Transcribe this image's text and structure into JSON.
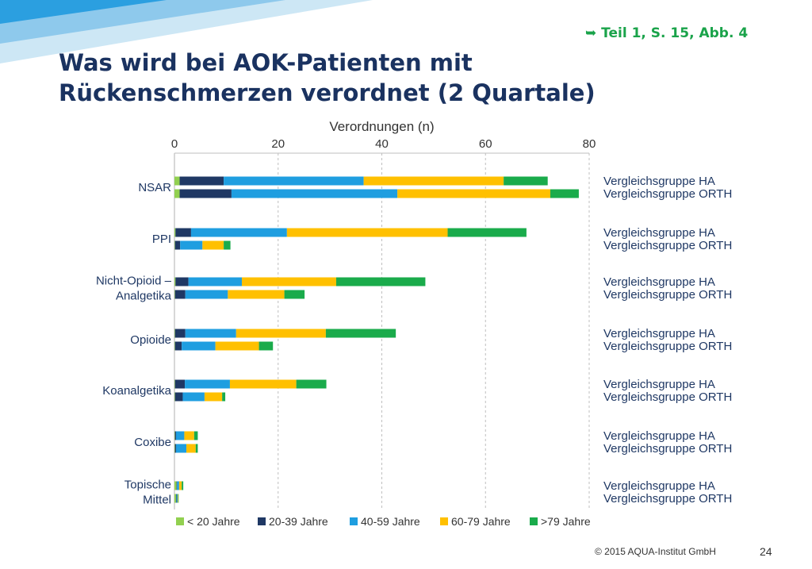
{
  "header": {
    "reference": "➥ Teil  1, S. 15, Abb. 4",
    "title_line1": "Was wird bei AOK-Patienten mit",
    "title_line2": "Rückenschmerzen verordnet (2 Quartale)"
  },
  "footer": {
    "copyright": "© 2015 AQUA-Institut GmbH",
    "page_number": "24"
  },
  "colors": {
    "stripe_light": "#cde7f5",
    "stripe_mid": "#8ec9ec",
    "stripe_dark": "#2b9fe0",
    "grid": "#bfbfbf",
    "axis_text": "#333333",
    "category_text": "#1f3864"
  },
  "chart_data": {
    "type": "bar",
    "orientation": "horizontal",
    "stacked": true,
    "xlabel": "Verordnungen (n)",
    "xlim": [
      0,
      80
    ],
    "xticks": [
      0,
      20,
      40,
      60,
      80
    ],
    "grid": true,
    "legend_position": "bottom",
    "categories": [
      "NSAR",
      "PPI",
      "Nicht-Opioid –\nAnalgetika",
      "Opioide",
      "Koanalgetika",
      "Coxibe",
      "Topische\nMittel"
    ],
    "groups": [
      "Vergleichsgruppe HA",
      "Vergleichsgruppe ORTH"
    ],
    "series": [
      {
        "name": "< 20 Jahre",
        "color": "#92d050",
        "values": [
          [
            1.0,
            1.0
          ],
          [
            0.2,
            0.1
          ],
          [
            0.2,
            0.1
          ],
          [
            0.1,
            0.1
          ],
          [
            0.1,
            0.1
          ],
          [
            0.1,
            0.1
          ],
          [
            0.4,
            0.3
          ]
        ]
      },
      {
        "name": "20-39 Jahre",
        "color": "#1f3864",
        "values": [
          [
            8.5,
            10.0
          ],
          [
            3.0,
            1.0
          ],
          [
            2.5,
            2.0
          ],
          [
            2.0,
            1.3
          ],
          [
            1.9,
            1.5
          ],
          [
            0.2,
            0.2
          ],
          [
            0.1,
            0.1
          ]
        ]
      },
      {
        "name": "40-59 Jahre",
        "color": "#1f9ee0",
        "values": [
          [
            27.0,
            32.0
          ],
          [
            18.5,
            4.3
          ],
          [
            10.3,
            8.2
          ],
          [
            9.8,
            6.5
          ],
          [
            8.7,
            4.2
          ],
          [
            1.6,
            2.0
          ],
          [
            0.4,
            0.2
          ]
        ]
      },
      {
        "name": "60-79 Jahre",
        "color": "#ffc000",
        "values": [
          [
            27.0,
            29.5
          ],
          [
            31.0,
            4.1
          ],
          [
            18.2,
            10.9
          ],
          [
            17.3,
            8.4
          ],
          [
            12.8,
            3.4
          ],
          [
            1.9,
            1.8
          ],
          [
            0.5,
            0.1
          ]
        ]
      },
      {
        "name": ">79 Jahre",
        "color": "#1aab4b",
        "values": [
          [
            8.5,
            5.5
          ],
          [
            15.2,
            1.3
          ],
          [
            17.2,
            3.9
          ],
          [
            13.5,
            2.7
          ],
          [
            5.8,
            0.6
          ],
          [
            0.7,
            0.4
          ],
          [
            0.3,
            0.1
          ]
        ]
      }
    ]
  }
}
